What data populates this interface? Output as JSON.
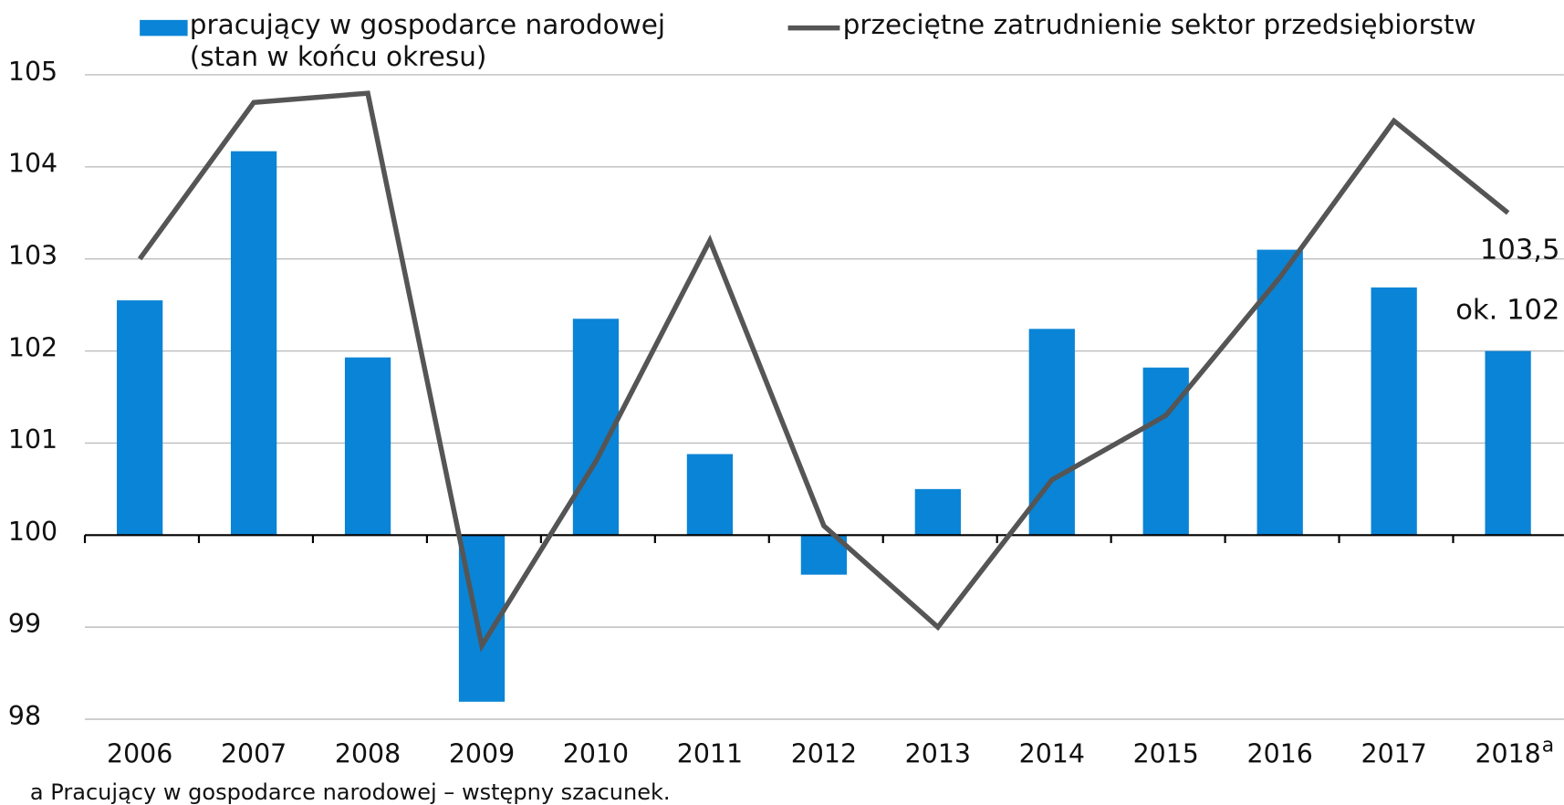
{
  "chart_data": {
    "type": "bar+line",
    "categories": [
      "2006",
      "2007",
      "2008",
      "2009",
      "2010",
      "2011",
      "2012",
      "2013",
      "2014",
      "2015",
      "2016",
      "2017",
      "2018"
    ],
    "category_note": "a",
    "series": [
      {
        "name": "pracujący w gospodarce narodowej (stan w końcu okresu)",
        "type": "bar",
        "color": "#0a84d6",
        "values": [
          102.55,
          104.17,
          101.93,
          98.19,
          102.35,
          100.88,
          99.57,
          100.5,
          102.24,
          101.82,
          103.1,
          102.69,
          102
        ],
        "value_labels": [
          null,
          null,
          null,
          null,
          null,
          null,
          null,
          null,
          null,
          null,
          null,
          null,
          "ok. 102"
        ]
      },
      {
        "name": "przeciętne zatrudnienie sektor przedsiębiorstw",
        "type": "line",
        "color": "#555555",
        "values": [
          103,
          104.7,
          104.8,
          98.8,
          100.8,
          103.2,
          100.1,
          99,
          100.6,
          101.3,
          102.8,
          104.5,
          103.5
        ],
        "value_labels": [
          null,
          null,
          null,
          null,
          null,
          null,
          null,
          null,
          null,
          null,
          null,
          null,
          "103,5"
        ]
      }
    ],
    "base": 100,
    "ylim": [
      98,
      105
    ],
    "yticks": [
      98,
      99,
      100,
      101,
      102,
      103,
      104,
      105
    ],
    "grid": true,
    "footnote": "a Pracujący w gospodarce narodowej – wstępny szacunek."
  }
}
